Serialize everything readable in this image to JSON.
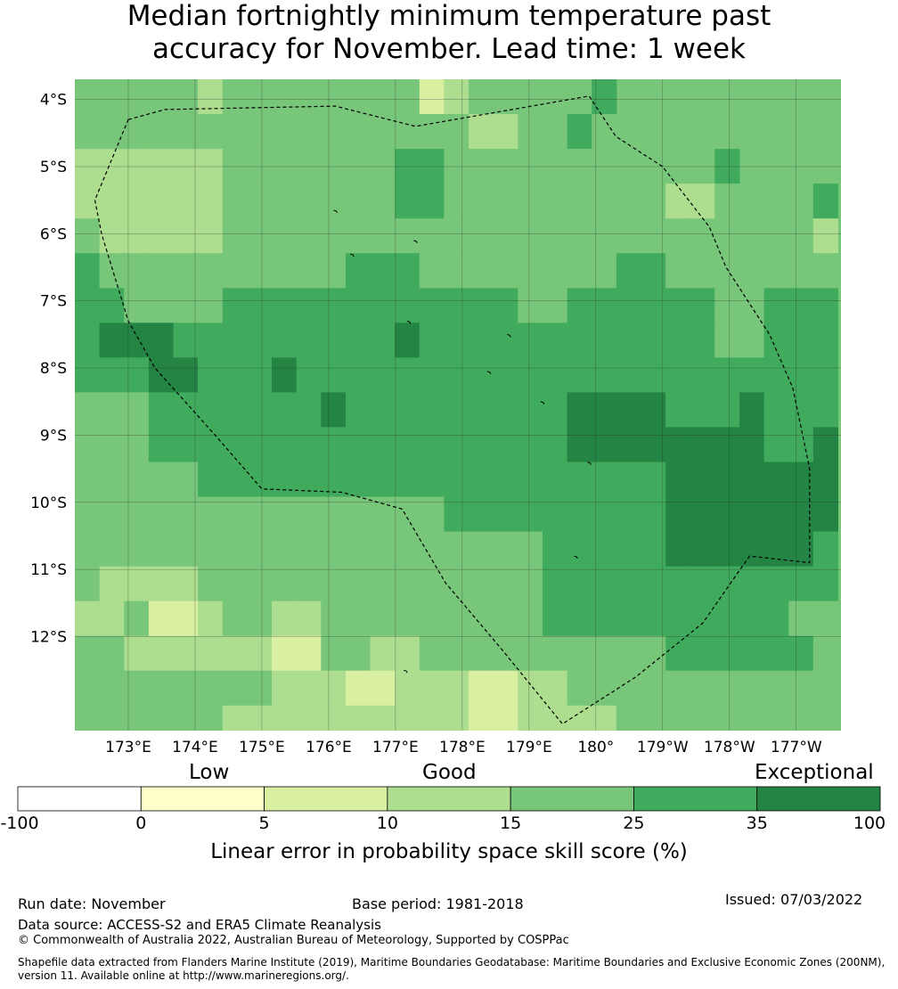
{
  "title": {
    "line1": "Median fortnightly minimum temperature past",
    "line2": "accuracy for November. Lead time: 1 week"
  },
  "chart_data": {
    "type": "heatmap",
    "title": "Median fortnightly minimum temperature past accuracy for November. Lead time: 1 week",
    "x_ticks": [
      "173°E",
      "174°E",
      "175°E",
      "176°E",
      "177°E",
      "178°E",
      "179°E",
      "180°",
      "179°W",
      "178°W",
      "177°W"
    ],
    "y_ticks": [
      "4°S",
      "5°S",
      "6°S",
      "7°S",
      "8°S",
      "9°S",
      "10°S",
      "11°S",
      "12°S"
    ],
    "lon_range_east": [
      172.2,
      183.67
    ],
    "lat_range_south": [
      3.7,
      13.4
    ],
    "grid_cell_deg": 0.833,
    "grid_origin": {
      "lon": 172.2,
      "lat_south": 3.7
    },
    "value_classes": [
      "0-5",
      "5-10",
      "10-15",
      "15-25",
      "25-35",
      "35-100"
    ],
    "class_grid": [
      [
        3,
        3,
        3,
        3,
        3,
        2,
        3,
        3,
        3,
        3,
        3,
        3,
        3,
        3,
        1,
        2,
        3,
        3,
        3,
        3,
        3,
        4
      ],
      [
        3,
        3,
        3,
        3,
        3,
        3,
        3,
        3,
        3,
        3,
        3,
        3,
        3,
        3,
        3,
        3,
        2,
        2,
        3,
        3,
        4,
        3,
        3,
        3
      ],
      [
        2,
        2,
        2,
        2,
        2,
        2,
        3,
        3,
        3,
        3,
        3,
        3,
        3,
        4,
        4,
        3,
        3,
        3,
        3,
        3,
        3,
        3,
        3,
        3,
        3,
        3,
        4
      ],
      [
        2,
        2,
        2,
        2,
        2,
        2,
        3,
        3,
        3,
        3,
        3,
        3,
        3,
        4,
        4,
        3,
        3,
        3,
        3,
        3,
        3,
        3,
        3,
        3,
        2,
        2,
        3,
        3,
        3,
        3,
        4
      ],
      [
        3,
        2,
        2,
        2,
        2,
        2,
        3,
        3,
        3,
        3,
        3,
        3,
        3,
        3,
        3,
        3,
        3,
        3,
        3,
        3,
        3,
        3,
        3,
        3,
        3,
        3,
        3,
        3,
        3,
        3,
        2
      ],
      [
        4,
        3,
        3,
        3,
        3,
        3,
        3,
        3,
        3,
        3,
        3,
        4,
        4,
        4,
        3,
        3,
        3,
        3,
        3,
        3,
        3,
        3,
        4,
        4,
        3,
        3,
        3,
        3,
        3,
        3,
        3
      ],
      [
        4,
        4,
        3,
        3,
        3,
        3,
        4,
        4,
        4,
        4,
        4,
        4,
        4,
        4,
        4,
        4,
        4,
        4,
        3,
        3,
        4,
        4,
        4,
        4,
        4,
        4,
        3,
        3,
        4,
        4,
        4
      ],
      [
        4,
        5,
        5,
        5,
        4,
        4,
        4,
        4,
        4,
        4,
        4,
        4,
        4,
        5,
        4,
        4,
        4,
        4,
        4,
        4,
        4,
        4,
        4,
        4,
        4,
        4,
        3,
        3,
        4,
        4,
        4
      ],
      [
        4,
        4,
        4,
        5,
        5,
        4,
        4,
        4,
        5,
        4,
        4,
        4,
        4,
        4,
        4,
        4,
        4,
        4,
        4,
        4,
        4,
        4,
        4,
        4,
        4,
        4,
        4,
        4,
        4,
        4,
        4
      ],
      [
        3,
        3,
        3,
        4,
        4,
        4,
        4,
        4,
        4,
        4,
        5,
        4,
        4,
        4,
        4,
        4,
        4,
        4,
        4,
        4,
        5,
        5,
        5,
        5,
        4,
        4,
        4,
        5,
        4,
        4,
        4
      ],
      [
        3,
        3,
        3,
        4,
        4,
        4,
        4,
        4,
        4,
        4,
        4,
        4,
        4,
        4,
        4,
        4,
        4,
        4,
        4,
        4,
        5,
        5,
        5,
        5,
        5,
        5,
        5,
        5,
        4,
        4,
        5
      ],
      [
        3,
        3,
        3,
        3,
        3,
        4,
        4,
        4,
        4,
        4,
        4,
        4,
        4,
        4,
        4,
        4,
        4,
        4,
        4,
        4,
        4,
        4,
        4,
        4,
        5,
        5,
        5,
        5,
        5,
        5,
        5
      ],
      [
        3,
        3,
        3,
        3,
        3,
        3,
        3,
        3,
        3,
        3,
        3,
        3,
        3,
        3,
        3,
        4,
        4,
        4,
        4,
        4,
        4,
        4,
        4,
        4,
        5,
        5,
        5,
        5,
        5,
        5,
        5
      ],
      [
        3,
        3,
        3,
        3,
        3,
        3,
        3,
        3,
        3,
        3,
        3,
        3,
        3,
        3,
        3,
        3,
        3,
        3,
        3,
        4,
        4,
        4,
        4,
        4,
        5,
        5,
        5,
        5,
        5,
        5,
        4
      ],
      [
        3,
        2,
        2,
        2,
        2,
        3,
        3,
        3,
        3,
        3,
        3,
        3,
        3,
        3,
        3,
        3,
        3,
        3,
        3,
        4,
        4,
        4,
        4,
        4,
        4,
        4,
        4,
        4,
        4,
        4,
        4
      ],
      [
        2,
        2,
        3,
        1,
        1,
        2,
        3,
        3,
        2,
        2,
        3,
        3,
        3,
        3,
        3,
        3,
        3,
        3,
        3,
        4,
        4,
        4,
        4,
        4,
        4,
        4,
        4,
        4,
        4,
        3,
        3
      ],
      [
        3,
        3,
        2,
        2,
        2,
        2,
        2,
        2,
        1,
        1,
        3,
        3,
        2,
        2,
        3,
        3,
        3,
        3,
        3,
        3,
        3,
        3,
        3,
        3,
        4,
        4,
        4,
        4,
        4,
        4,
        3
      ],
      [
        3,
        3,
        3,
        3,
        3,
        3,
        3,
        3,
        2,
        2,
        2,
        1,
        1,
        2,
        2,
        2,
        1,
        1,
        2,
        2,
        3,
        3,
        3,
        3,
        3,
        3,
        3,
        3,
        3,
        3,
        3
      ],
      [
        3,
        3,
        3,
        3,
        3,
        3,
        2,
        2,
        2,
        2,
        2,
        2,
        2,
        2,
        2,
        2,
        1,
        1,
        2,
        2,
        2,
        2,
        3,
        3,
        3,
        3,
        3,
        3,
        3,
        3,
        3
      ]
    ],
    "eez_boundary_lonlat": [
      [
        173.0,
        -4.3
      ],
      [
        173.55,
        -4.15
      ],
      [
        176.1,
        -4.1
      ],
      [
        177.3,
        -4.4
      ],
      [
        179.9,
        -3.95
      ],
      [
        180.3,
        -4.55
      ],
      [
        181.0,
        -5.0
      ],
      [
        181.7,
        -5.9
      ],
      [
        181.95,
        -6.5
      ],
      [
        182.6,
        -7.5
      ],
      [
        182.95,
        -8.3
      ],
      [
        183.2,
        -9.5
      ],
      [
        183.2,
        -10.9
      ],
      [
        182.3,
        -10.8
      ],
      [
        181.6,
        -11.8
      ],
      [
        180.6,
        -12.6
      ],
      [
        179.5,
        -13.3
      ],
      [
        178.6,
        -12.2
      ],
      [
        177.75,
        -11.2
      ],
      [
        177.1,
        -10.1
      ],
      [
        176.2,
        -9.85
      ],
      [
        175.0,
        -9.8
      ],
      [
        174.3,
        -9.0
      ],
      [
        173.4,
        -8.0
      ],
      [
        173.0,
        -7.3
      ],
      [
        172.6,
        -6.0
      ],
      [
        172.5,
        -5.5
      ],
      [
        173.0,
        -4.3
      ]
    ],
    "colorbar": {
      "categories": [
        "Low",
        "Good",
        "Exceptional"
      ],
      "boundaries": [
        "-100",
        "0",
        "5",
        "10",
        "15",
        "25",
        "35",
        "100"
      ],
      "colors": [
        "#ffffff",
        "#ffffcc",
        "#d9f0a3",
        "#addd8e",
        "#78c679",
        "#41ab5d",
        "#238443"
      ],
      "label": "Linear error in probability space skill score (%)"
    },
    "colors": {
      "gridline": "#2a2a2a",
      "boundary": "#000000"
    }
  },
  "footer": {
    "run_date": "Run date: November",
    "base_period": "Base period: 1981-2018",
    "issued": "Issued: 07/03/2022",
    "data_source": "Data source: ACCESS-S2 and ERA5 Climate Reanalysis",
    "copyright": "© Commonwealth of Australia 2022, Australian Bureau of Meteorology, Supported by COSPPac",
    "shapefile_line1": "Shapefile data extracted from Flanders Marine Institute (2019), Maritime Boundaries Geodatabase: Maritime Boundaries and Exclusive Economic Zones (200NM),",
    "shapefile_line2": "version 11. Available online at http://www.marineregions.org/."
  }
}
